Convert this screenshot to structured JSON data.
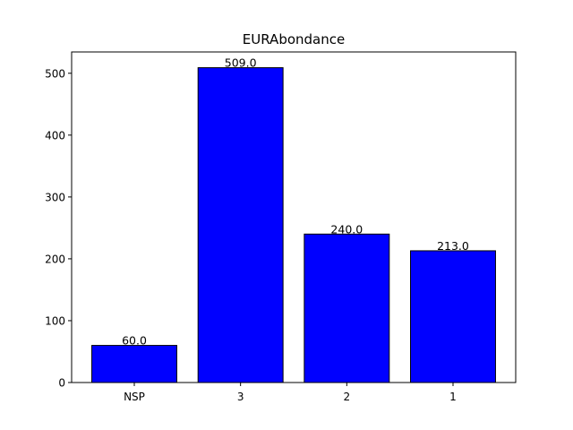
{
  "chart_data": {
    "type": "bar",
    "title": "EURAbondance",
    "xlabel": "",
    "ylabel": "",
    "categories": [
      "NSP",
      "3",
      "2",
      "1"
    ],
    "values": [
      60.0,
      509.0,
      240.0,
      213.0
    ],
    "data_labels": [
      "60.0",
      "509.0",
      "240.0",
      "213.0"
    ],
    "yticks": [
      0,
      100,
      200,
      300,
      400,
      500
    ],
    "ylim": [
      0,
      534.45
    ],
    "grid": false,
    "bar_color": "#0000ff",
    "edge_color": "#000000"
  }
}
